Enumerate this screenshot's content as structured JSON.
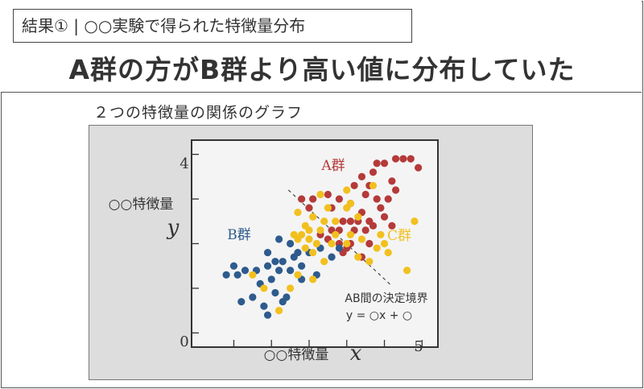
{
  "slide": {
    "kicker": "結果① | ○○実験で得られた特徴量分布",
    "headline": "A群の方がB群より高い値に分布していた",
    "subtitle": "２つの特徴量の関係のグラフ"
  },
  "colors": {
    "group_a": "#b53a3a",
    "group_b": "#2e5b8e",
    "group_c": "#f2c01e",
    "plot_bg": "#f4f4f4",
    "panel_bg": "#dddddd"
  },
  "chart_data": {
    "type": "scatter",
    "xlabel": "○○特徴量",
    "xlabel_symbol": "x",
    "ylabel": "○○特徴量",
    "ylabel_symbol": "y",
    "origin_label": "0",
    "x_tick_labels": [
      "5"
    ],
    "y_tick_labels": [
      "4"
    ],
    "xlim": [
      -1.1,
      5.4
    ],
    "ylim": [
      -0.3,
      4.3
    ],
    "x_ticks": [
      0,
      1,
      2,
      3,
      4,
      5
    ],
    "y_ticks": [
      0,
      1,
      2,
      3,
      4
    ],
    "grid": false,
    "group_labels": {
      "a": "A群",
      "b": "B群",
      "c": "C群"
    },
    "boundary": {
      "label": "AB間の決定境界",
      "equation": "y = ○x + ○",
      "from": [
        1.45,
        3.2
      ],
      "to": [
        4.2,
        1.05
      ]
    },
    "series": [
      {
        "name": "A群",
        "points": [
          [
            1.8,
            3.0
          ],
          [
            2.1,
            3.0
          ],
          [
            2.0,
            2.8
          ],
          [
            2.5,
            3.1
          ],
          [
            2.6,
            2.8
          ],
          [
            2.8,
            3.0
          ],
          [
            3.1,
            2.9
          ],
          [
            3.2,
            3.3
          ],
          [
            3.4,
            3.5
          ],
          [
            3.7,
            3.6
          ],
          [
            3.8,
            3.8
          ],
          [
            4.0,
            3.8
          ],
          [
            4.3,
            3.9
          ],
          [
            4.5,
            3.9
          ],
          [
            4.7,
            3.9
          ],
          [
            4.9,
            3.7
          ],
          [
            3.5,
            3.1
          ],
          [
            3.6,
            3.3
          ],
          [
            4.2,
            3.4
          ],
          [
            4.3,
            3.2
          ],
          [
            4.1,
            3.0
          ],
          [
            3.8,
            3.0
          ],
          [
            3.3,
            2.5
          ],
          [
            3.9,
            2.8
          ],
          [
            4.0,
            2.6
          ],
          [
            3.7,
            2.4
          ],
          [
            3.5,
            2.3
          ],
          [
            3.2,
            2.3
          ],
          [
            2.9,
            2.5
          ],
          [
            2.6,
            2.3
          ],
          [
            2.5,
            2.1
          ],
          [
            2.3,
            2.2
          ],
          [
            2.8,
            2.3
          ],
          [
            3.4,
            2.7
          ],
          [
            3.6,
            2.5
          ],
          [
            2.8,
            2.0
          ],
          [
            3.0,
            1.9
          ],
          [
            3.4,
            1.7
          ],
          [
            2.9,
            1.8
          ],
          [
            4.2,
            2.4
          ],
          [
            3.1,
            2.5
          ],
          [
            3.1,
            2.0
          ],
          [
            3.6,
            2.0
          ]
        ]
      },
      {
        "name": "B群",
        "points": [
          [
            -0.2,
            1.3
          ],
          [
            0.1,
            1.3
          ],
          [
            0.3,
            1.4
          ],
          [
            0.0,
            1.5
          ],
          [
            0.6,
            1.4
          ],
          [
            0.7,
            1.1
          ],
          [
            0.9,
            1.5
          ],
          [
            1.0,
            1.2
          ],
          [
            1.1,
            1.6
          ],
          [
            1.3,
            1.6
          ],
          [
            1.2,
            1.4
          ],
          [
            0.9,
            1.8
          ],
          [
            1.5,
            1.4
          ],
          [
            1.6,
            1.7
          ],
          [
            1.5,
            2.0
          ],
          [
            1.2,
            2.1
          ],
          [
            1.8,
            1.5
          ],
          [
            2.0,
            1.8
          ],
          [
            2.3,
            1.9
          ],
          [
            2.6,
            1.7
          ],
          [
            2.8,
            1.9
          ],
          [
            0.2,
            0.7
          ],
          [
            0.5,
            0.8
          ],
          [
            0.8,
            0.6
          ],
          [
            1.1,
            0.9
          ],
          [
            1.4,
            0.8
          ],
          [
            0.9,
            0.4
          ],
          [
            1.8,
            1.2
          ],
          [
            2.2,
            1.3
          ],
          [
            1.3,
            0.7
          ],
          [
            1.7,
            1.8
          ]
        ]
      },
      {
        "name": "C群",
        "points": [
          [
            0.5,
            1.3
          ],
          [
            0.8,
            1.0
          ],
          [
            1.2,
            0.5
          ],
          [
            1.5,
            1.0
          ],
          [
            1.7,
            1.3
          ],
          [
            2.1,
            1.2
          ],
          [
            2.4,
            1.6
          ],
          [
            2.0,
            2.3
          ],
          [
            2.1,
            2.6
          ],
          [
            1.8,
            2.2
          ],
          [
            1.7,
            2.7
          ],
          [
            2.4,
            2.5
          ],
          [
            2.7,
            2.5
          ],
          [
            2.5,
            2.8
          ],
          [
            3.0,
            2.8
          ],
          [
            3.3,
            2.6
          ],
          [
            2.2,
            2.0
          ],
          [
            1.9,
            1.9
          ],
          [
            2.3,
            2.3
          ],
          [
            2.7,
            2.2
          ],
          [
            3.0,
            2.0
          ],
          [
            3.1,
            2.2
          ],
          [
            3.3,
            1.7
          ],
          [
            3.6,
            1.6
          ],
          [
            3.8,
            1.9
          ],
          [
            2.1,
            1.8
          ],
          [
            4.6,
            1.4
          ],
          [
            4.8,
            2.5
          ],
          [
            4.0,
            2.0
          ],
          [
            1.6,
            2.2
          ],
          [
            2.3,
            3.1
          ],
          [
            2.6,
            2.0
          ],
          [
            1.9,
            2.4
          ],
          [
            3.1,
            2.9
          ],
          [
            3.4,
            2.1
          ],
          [
            1.7,
            2.1
          ],
          [
            2.0,
            2.1
          ],
          [
            3.7,
            3.3
          ],
          [
            3.9,
            2.2
          ],
          [
            4.1,
            1.8
          ],
          [
            3.0,
            3.2
          ]
        ]
      }
    ]
  }
}
